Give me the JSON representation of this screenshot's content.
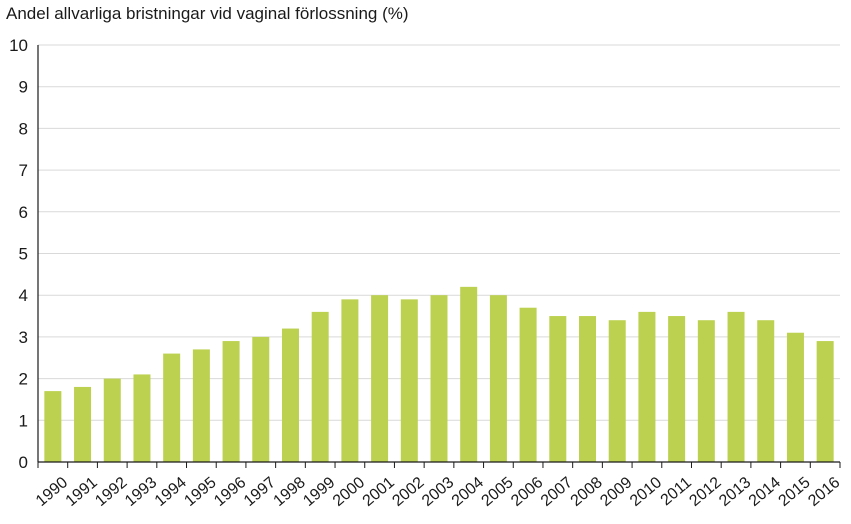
{
  "chart_data": {
    "type": "bar",
    "title": "Andel allvarliga bristningar vid vaginal förlossning (%)",
    "xlabel": "",
    "ylabel": "",
    "ylim": [
      0,
      10
    ],
    "yticks": [
      0,
      1,
      2,
      3,
      4,
      5,
      6,
      7,
      8,
      9,
      10
    ],
    "grid": true,
    "bar_color": "#bcd14f",
    "categories": [
      "1990",
      "1991",
      "1992",
      "1993",
      "1994",
      "1995",
      "1996",
      "1997",
      "1998",
      "1999",
      "2000",
      "2001",
      "2002",
      "2003",
      "2004",
      "2005",
      "2006",
      "2007",
      "2008",
      "2009",
      "2010",
      "2011",
      "2012",
      "2013",
      "2014",
      "2015",
      "2016"
    ],
    "values": [
      1.7,
      1.8,
      2.0,
      2.1,
      2.6,
      2.7,
      2.9,
      3.0,
      3.2,
      3.6,
      3.9,
      4.0,
      3.9,
      4.0,
      4.2,
      4.0,
      3.7,
      3.5,
      3.5,
      3.4,
      3.6,
      3.5,
      3.4,
      3.6,
      3.4,
      3.1,
      2.9
    ]
  }
}
